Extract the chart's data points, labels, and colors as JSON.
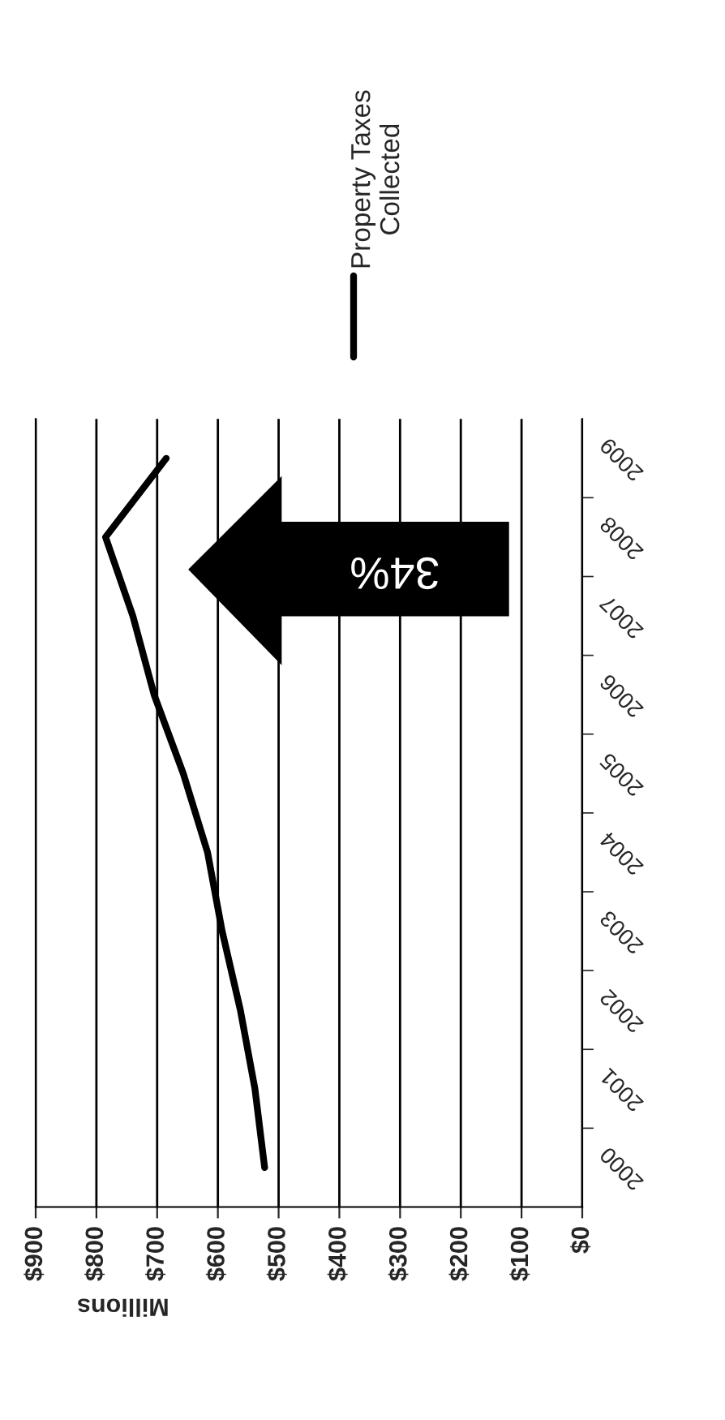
{
  "chart_data": {
    "type": "line",
    "orientation": "horizontal",
    "xlabel": "Millions",
    "categories": [
      "2009",
      "2008",
      "2007",
      "2006",
      "2005",
      "2004",
      "2003",
      "2002",
      "2001",
      "2000"
    ],
    "series": [
      {
        "name": "Property Taxes Collected",
        "color": "#000000",
        "values": [
          685,
          785,
          740,
          705,
          657,
          617,
          593,
          563,
          539,
          523
        ]
      }
    ],
    "xlim": [
      900,
      0
    ],
    "xticks": [
      {
        "value": 900,
        "label": "$900"
      },
      {
        "value": 800,
        "label": "$800"
      },
      {
        "value": 700,
        "label": "$700"
      },
      {
        "value": 600,
        "label": "$600"
      },
      {
        "value": 500,
        "label": "$500"
      },
      {
        "value": 400,
        "label": "$400"
      },
      {
        "value": 300,
        "label": "$300"
      },
      {
        "value": 200,
        "label": "$200"
      },
      {
        "value": 100,
        "label": "$100"
      },
      {
        "value": 0,
        "label": "$0"
      }
    ],
    "grid": "x",
    "legend": "top",
    "annotations": [
      "34%"
    ]
  }
}
